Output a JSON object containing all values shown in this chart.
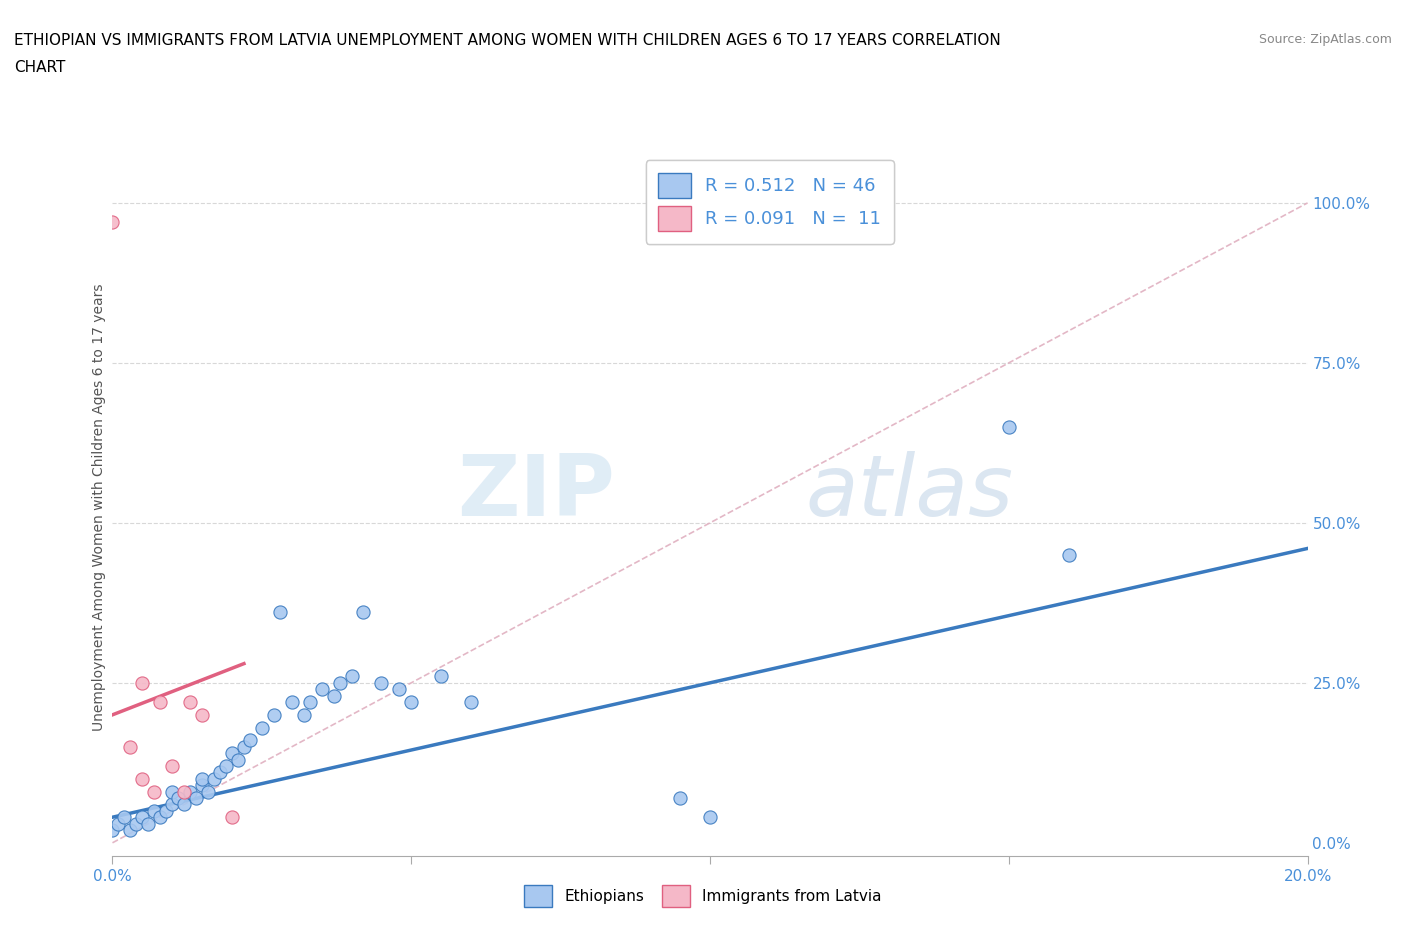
{
  "title_line1": "ETHIOPIAN VS IMMIGRANTS FROM LATVIA UNEMPLOYMENT AMONG WOMEN WITH CHILDREN AGES 6 TO 17 YEARS CORRELATION",
  "title_line2": "CHART",
  "source_text": "Source: ZipAtlas.com",
  "ylabel": "Unemployment Among Women with Children Ages 6 to 17 years",
  "xlim": [
    0.0,
    0.2
  ],
  "ylim": [
    -0.02,
    1.07
  ],
  "ytick_labels": [
    "0.0%",
    "25.0%",
    "50.0%",
    "75.0%",
    "100.0%"
  ],
  "ytick_positions": [
    0.0,
    0.25,
    0.5,
    0.75,
    1.0
  ],
  "xtick_labels": [
    "0.0%",
    "",
    "",
    "",
    "20.0%"
  ],
  "xtick_positions": [
    0.0,
    0.05,
    0.1,
    0.15,
    0.2
  ],
  "r_ethiopian": 0.512,
  "n_ethiopian": 46,
  "r_latvia": 0.091,
  "n_latvia": 11,
  "ethiopian_color": "#a8c8f0",
  "latvia_color": "#f5b8c8",
  "trendline_ethiopian_color": "#3a7abf",
  "trendline_latvia_color": "#e06080",
  "diagonal_color": "#e0b0c0",
  "background_color": "#ffffff",
  "watermark_zip": "ZIP",
  "watermark_atlas": "atlas",
  "ethiopians_scatter_x": [
    0.0,
    0.001,
    0.002,
    0.003,
    0.004,
    0.005,
    0.006,
    0.007,
    0.008,
    0.009,
    0.01,
    0.01,
    0.011,
    0.012,
    0.013,
    0.014,
    0.015,
    0.015,
    0.016,
    0.017,
    0.018,
    0.019,
    0.02,
    0.021,
    0.022,
    0.023,
    0.025,
    0.027,
    0.028,
    0.03,
    0.032,
    0.033,
    0.035,
    0.037,
    0.038,
    0.04,
    0.042,
    0.045,
    0.048,
    0.05,
    0.055,
    0.06,
    0.095,
    0.1,
    0.15,
    0.16
  ],
  "ethiopians_scatter_y": [
    0.02,
    0.03,
    0.04,
    0.02,
    0.03,
    0.04,
    0.03,
    0.05,
    0.04,
    0.05,
    0.06,
    0.08,
    0.07,
    0.06,
    0.08,
    0.07,
    0.09,
    0.1,
    0.08,
    0.1,
    0.11,
    0.12,
    0.14,
    0.13,
    0.15,
    0.16,
    0.18,
    0.2,
    0.36,
    0.22,
    0.2,
    0.22,
    0.24,
    0.23,
    0.25,
    0.26,
    0.36,
    0.25,
    0.24,
    0.22,
    0.26,
    0.22,
    0.07,
    0.04,
    0.65,
    0.45
  ],
  "latvia_scatter_x": [
    0.0,
    0.003,
    0.005,
    0.005,
    0.007,
    0.008,
    0.01,
    0.012,
    0.013,
    0.015,
    0.02
  ],
  "latvia_scatter_y": [
    0.97,
    0.15,
    0.25,
    0.1,
    0.08,
    0.22,
    0.12,
    0.08,
    0.22,
    0.2,
    0.04
  ],
  "eth_trend_x0": 0.0,
  "eth_trend_y0": 0.04,
  "eth_trend_x1": 0.2,
  "eth_trend_y1": 0.46,
  "lat_trend_x0": 0.0,
  "lat_trend_y0": 0.2,
  "lat_trend_x1": 0.022,
  "lat_trend_y1": 0.28
}
